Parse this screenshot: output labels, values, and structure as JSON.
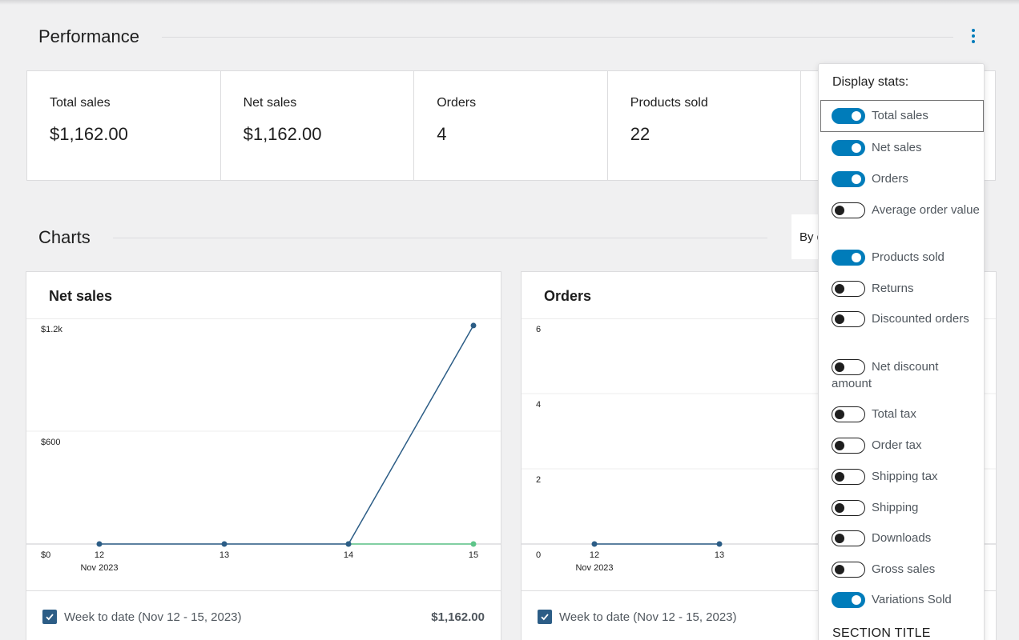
{
  "performance": {
    "title": "Performance",
    "menu_icon": "ellipsis-vertical-icon",
    "stats": [
      {
        "label": "Total sales",
        "value": "$1,162.00"
      },
      {
        "label": "Net sales",
        "value": "$1,162.00"
      },
      {
        "label": "Orders",
        "value": "4"
      },
      {
        "label": "Products sold",
        "value": "22"
      },
      {
        "label": "",
        "value": ""
      }
    ]
  },
  "charts": {
    "title": "Charts",
    "interval_select_label": "By d"
  },
  "net_sales_chart": {
    "title": "Net sales",
    "legend_label": "Week to date (Nov 12 - 15, 2023)",
    "legend_amount": "$1,162.00",
    "chart_data": {
      "type": "line",
      "x": [
        "12",
        "13",
        "14",
        "15"
      ],
      "x_sublabel": "Nov 2023",
      "series": [
        {
          "values": [
            0,
            0,
            0,
            1162
          ],
          "color": "#2c5d86"
        },
        {
          "values": [
            null,
            null,
            0,
            0
          ],
          "color": "#5ec589"
        }
      ],
      "y_ticks": [
        "$0",
        "$600",
        "$1.2k"
      ],
      "ylim": [
        0,
        1200
      ]
    }
  },
  "orders_chart": {
    "title": "Orders",
    "legend_label": "Week to date (Nov 12 - 15, 2023)",
    "chart_data": {
      "type": "line",
      "x": [
        "12",
        "13"
      ],
      "x_sublabel": "Nov 2023",
      "series": [
        {
          "values": [
            0,
            0
          ],
          "color": "#2c5d86"
        }
      ],
      "y_ticks": [
        "0",
        "2",
        "4",
        "6"
      ],
      "ylim": [
        0,
        6
      ]
    }
  },
  "display_stats": {
    "title": "Display stats:",
    "items": [
      {
        "label": "Total sales",
        "on": true
      },
      {
        "label": "Net sales",
        "on": true
      },
      {
        "label": "Orders",
        "on": true
      },
      {
        "label": "Average order value",
        "on": false
      },
      {
        "label": "Products sold",
        "on": true
      },
      {
        "label": "Returns",
        "on": false
      },
      {
        "label": "Discounted orders",
        "on": false
      },
      {
        "label": "Net discount amount",
        "on": false
      },
      {
        "label": "Total tax",
        "on": false
      },
      {
        "label": "Order tax",
        "on": false
      },
      {
        "label": "Shipping tax",
        "on": false
      },
      {
        "label": "Shipping",
        "on": false
      },
      {
        "label": "Downloads",
        "on": false
      },
      {
        "label": "Gross sales",
        "on": false
      },
      {
        "label": "Variations Sold",
        "on": true
      }
    ],
    "section_title": "SECTION TITLE"
  },
  "colors": {
    "accent": "#007cba",
    "series_primary": "#2c5d86",
    "series_secondary": "#5ec589"
  }
}
